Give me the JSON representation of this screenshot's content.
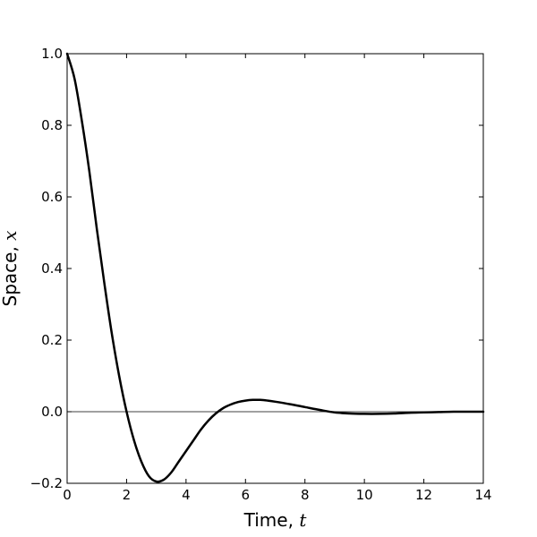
{
  "chart_data": {
    "type": "line",
    "xlabel": "Time, ",
    "xlabel_var": "t",
    "ylabel": "Space, ",
    "ylabel_var": "x",
    "xlim": [
      0,
      14
    ],
    "ylim": [
      -0.2,
      1.0
    ],
    "xticks": [
      "0",
      "2",
      "4",
      "6",
      "8",
      "10",
      "12",
      "14"
    ],
    "yticks": [
      "−0.2",
      "0.0",
      "0.2",
      "0.4",
      "0.6",
      "0.8",
      "1.0"
    ],
    "ytick_values": [
      -0.2,
      0.0,
      0.2,
      0.4,
      0.6,
      0.8,
      1.0
    ],
    "xtick_values": [
      0,
      2,
      4,
      6,
      8,
      10,
      12,
      14
    ],
    "grid": false,
    "reference_line": {
      "y": 0.0
    },
    "line_color": "#000000",
    "series": [
      {
        "x": [
          0,
          0.25,
          0.5,
          0.75,
          1.0,
          1.25,
          1.5,
          1.75,
          2.0,
          2.25,
          2.5,
          2.75,
          3.0,
          3.25,
          3.5,
          3.75,
          4.0,
          4.25,
          4.5,
          4.75,
          5.0,
          5.25,
          5.5,
          5.75,
          6.0,
          6.25,
          6.5,
          6.75,
          7.0,
          7.5,
          8.0,
          8.5,
          9.0,
          9.5,
          10.0,
          10.5,
          11.0,
          11.5,
          12.0,
          12.5,
          13.0,
          13.5,
          14.0
        ],
        "values": [
          1.0,
          0.93,
          0.81,
          0.67,
          0.51,
          0.36,
          0.22,
          0.1,
          0.0,
          -0.08,
          -0.14,
          -0.18,
          -0.195,
          -0.19,
          -0.17,
          -0.14,
          -0.11,
          -0.08,
          -0.05,
          -0.025,
          -0.005,
          0.01,
          0.02,
          0.027,
          0.031,
          0.033,
          0.033,
          0.031,
          0.028,
          0.021,
          0.013,
          0.005,
          -0.002,
          -0.005,
          -0.006,
          -0.006,
          -0.005,
          -0.003,
          -0.002,
          -0.001,
          0.0,
          0.0,
          0.0
        ]
      }
    ]
  }
}
